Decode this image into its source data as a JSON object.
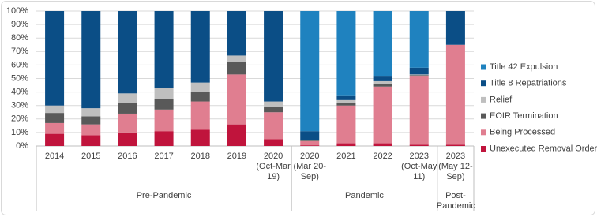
{
  "chart_data": {
    "type": "stacked_bar",
    "categories": [
      "2014",
      "2015",
      "2016",
      "2017",
      "2018",
      "2019",
      "2020 (Oct-Mar 19)",
      "2020 (Mar 20-Sep)",
      "2021",
      "2022",
      "2023 (Oct-May 11)",
      "2023 (May 12-Sep)"
    ],
    "groups": [
      {
        "name": "Pre-Pandemic",
        "size": 7
      },
      {
        "name": "Pandemic",
        "size": 4
      },
      {
        "name": "Post-Pandemic",
        "size": 1
      }
    ],
    "series": [
      {
        "name": "Unexecuted Removal Order",
        "color": "#c0143c",
        "values": [
          9,
          8,
          10,
          11,
          12,
          16,
          5,
          0.5,
          2,
          2,
          1,
          1
        ]
      },
      {
        "name": "Being Processed",
        "color": "#e07e90",
        "values": [
          8,
          8,
          14,
          16,
          21,
          37,
          20,
          3,
          28,
          42,
          51,
          74
        ]
      },
      {
        "name": "EOIR Termination",
        "color": "#595959",
        "values": [
          7.5,
          6,
          8,
          8,
          7,
          9,
          4,
          0.5,
          2,
          2,
          0.5,
          0
        ]
      },
      {
        "name": "Relief",
        "color": "#bfbfbf",
        "values": [
          5.5,
          6,
          7,
          8,
          7,
          5,
          4,
          0.5,
          2,
          2,
          0.5,
          0
        ]
      },
      {
        "name": "Title 8 Repatriations",
        "color": "#0b4e86",
        "values": [
          70,
          72,
          61,
          57,
          53,
          33,
          67,
          6.5,
          3,
          4,
          5,
          25
        ]
      },
      {
        "name": "Title 42 Expulsion",
        "color": "#1f82bf",
        "values": [
          0,
          0,
          0,
          0,
          0,
          0,
          0,
          89,
          63,
          48,
          42,
          0
        ]
      }
    ],
    "ylim": [
      0,
      100
    ],
    "yticks": [
      {
        "value": 0,
        "label": "0%"
      },
      {
        "value": 10,
        "label": "10%"
      },
      {
        "value": 20,
        "label": "20%"
      },
      {
        "value": 30,
        "label": "30%"
      },
      {
        "value": 40,
        "label": "40%"
      },
      {
        "value": 50,
        "label": "50%"
      },
      {
        "value": 60,
        "label": "60%"
      },
      {
        "value": 70,
        "label": "70%"
      },
      {
        "value": 80,
        "label": "80%"
      },
      {
        "value": 90,
        "label": "90%"
      },
      {
        "value": 100,
        "label": "100%"
      }
    ],
    "grid": true,
    "legend": "right"
  }
}
